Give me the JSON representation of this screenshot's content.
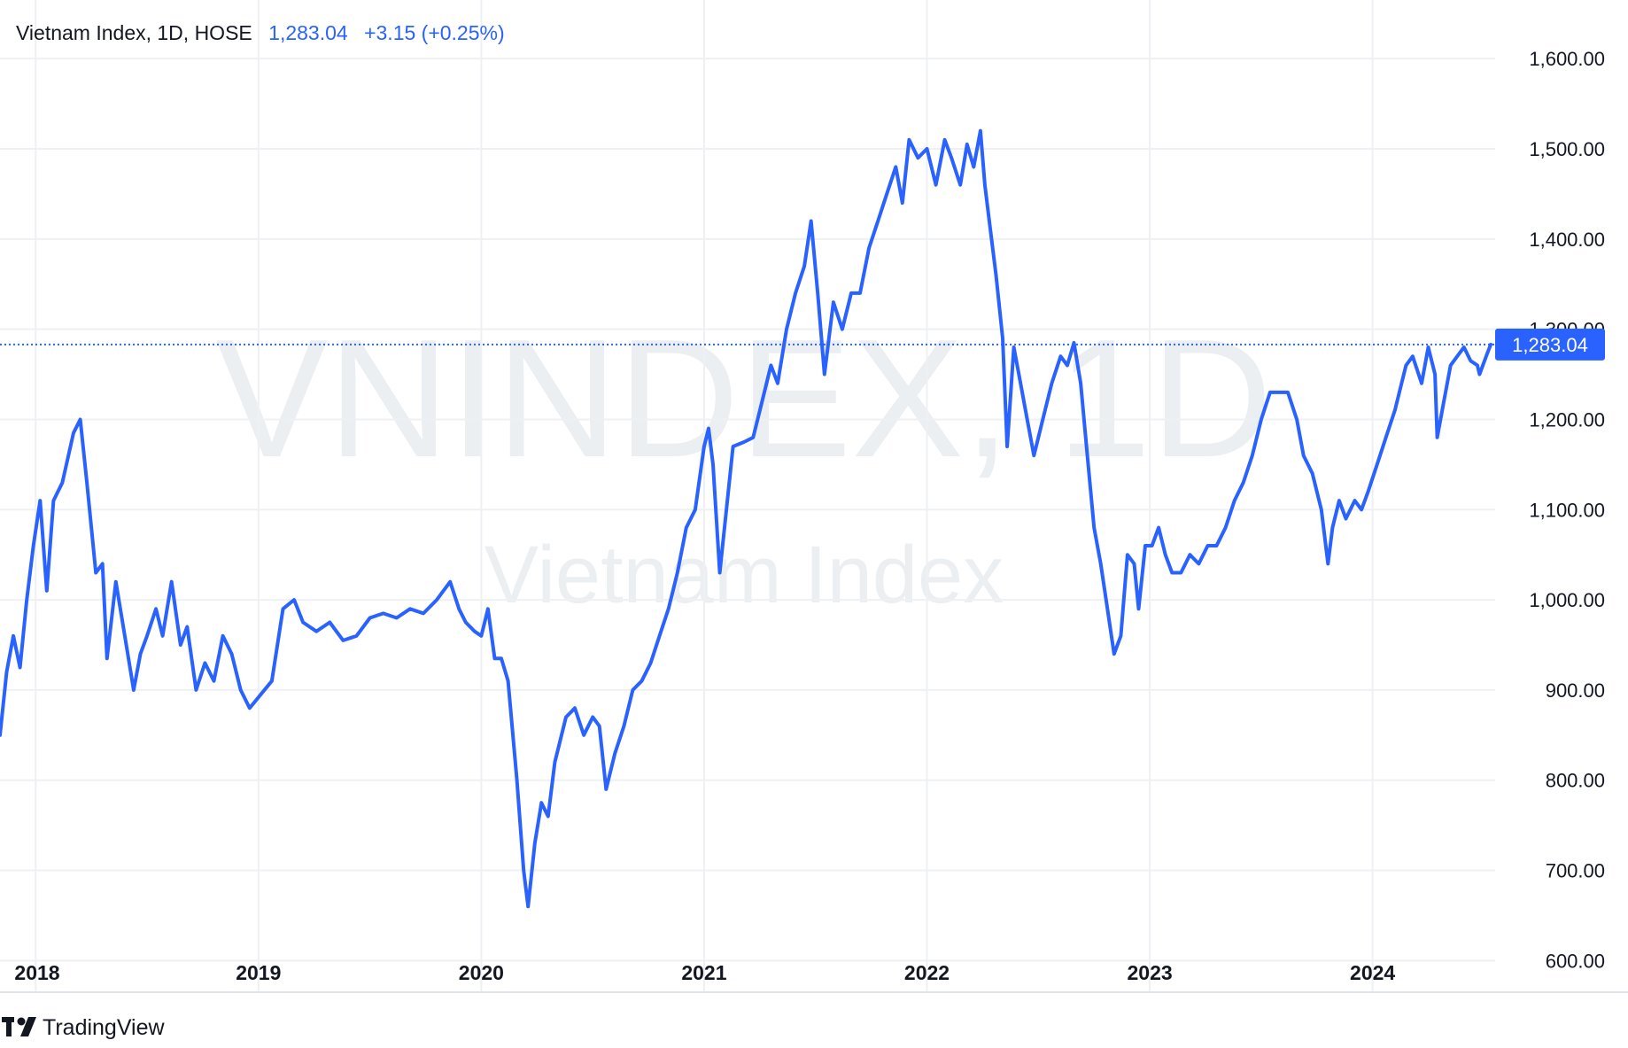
{
  "header": {
    "symbol_text": "Vietnam Index, 1D, HOSE",
    "last_price": "1,283.04",
    "change": "+3.15 (+0.25%)"
  },
  "watermark": {
    "symbol": "VNINDEX, 1D",
    "name": "Vietnam Index"
  },
  "price_label": "1,283.04",
  "branding": {
    "logo_text": "TradingView",
    "logo_icon": "tradingview-logo-icon"
  },
  "colors": {
    "line": "#2962ff",
    "label_bg": "#2962ff",
    "grid": "#eef0f3",
    "text": "#131722",
    "watermark": "#eceff2"
  },
  "chart_data": {
    "type": "line",
    "title": "Vietnam Index, 1D, HOSE",
    "xlabel": "",
    "ylabel": "",
    "ylim": [
      565,
      1665
    ],
    "xlim": [
      2017.84,
      2024.55
    ],
    "y_ticks": [
      "1,600.00",
      "1,500.00",
      "1,400.00",
      "1,300.00",
      "1,200.00",
      "1,100.00",
      "1,000.00",
      "900.00",
      "800.00",
      "700.00",
      "600.00"
    ],
    "y_tick_values": [
      1600,
      1500,
      1400,
      1300,
      1200,
      1100,
      1000,
      900,
      800,
      700,
      600
    ],
    "x_ticks": [
      "2018",
      "2019",
      "2020",
      "2021",
      "2022",
      "2023",
      "2024"
    ],
    "x_tick_values": [
      2018,
      2019,
      2020,
      2021,
      2022,
      2023,
      2024
    ],
    "last_value": 1283.04,
    "grid": true,
    "series": [
      {
        "points": [
          [
            2017.84,
            850
          ],
          [
            2017.87,
            920
          ],
          [
            2017.9,
            960
          ],
          [
            2017.93,
            925
          ],
          [
            2017.96,
            1000
          ],
          [
            2017.99,
            1060
          ],
          [
            2018.02,
            1110
          ],
          [
            2018.05,
            1010
          ],
          [
            2018.08,
            1110
          ],
          [
            2018.12,
            1130
          ],
          [
            2018.17,
            1185
          ],
          [
            2018.2,
            1200
          ],
          [
            2018.23,
            1130
          ],
          [
            2018.27,
            1030
          ],
          [
            2018.3,
            1040
          ],
          [
            2018.32,
            935
          ],
          [
            2018.36,
            1020
          ],
          [
            2018.4,
            960
          ],
          [
            2018.44,
            900
          ],
          [
            2018.47,
            940
          ],
          [
            2018.5,
            960
          ],
          [
            2018.54,
            990
          ],
          [
            2018.57,
            960
          ],
          [
            2018.61,
            1020
          ],
          [
            2018.65,
            950
          ],
          [
            2018.68,
            970
          ],
          [
            2018.72,
            900
          ],
          [
            2018.76,
            930
          ],
          [
            2018.8,
            910
          ],
          [
            2018.84,
            960
          ],
          [
            2018.88,
            940
          ],
          [
            2018.92,
            900
          ],
          [
            2018.96,
            880
          ],
          [
            2019.0,
            892
          ],
          [
            2019.06,
            910
          ],
          [
            2019.11,
            990
          ],
          [
            2019.16,
            1000
          ],
          [
            2019.2,
            975
          ],
          [
            2019.26,
            965
          ],
          [
            2019.32,
            975
          ],
          [
            2019.38,
            955
          ],
          [
            2019.44,
            960
          ],
          [
            2019.5,
            980
          ],
          [
            2019.56,
            985
          ],
          [
            2019.62,
            980
          ],
          [
            2019.68,
            990
          ],
          [
            2019.74,
            985
          ],
          [
            2019.8,
            1000
          ],
          [
            2019.86,
            1020
          ],
          [
            2019.9,
            990
          ],
          [
            2019.93,
            975
          ],
          [
            2019.97,
            965
          ],
          [
            2020.0,
            960
          ],
          [
            2020.03,
            990
          ],
          [
            2020.06,
            935
          ],
          [
            2020.09,
            935
          ],
          [
            2020.12,
            910
          ],
          [
            2020.16,
            800
          ],
          [
            2020.19,
            700
          ],
          [
            2020.21,
            660
          ],
          [
            2020.24,
            730
          ],
          [
            2020.27,
            775
          ],
          [
            2020.3,
            760
          ],
          [
            2020.33,
            820
          ],
          [
            2020.38,
            870
          ],
          [
            2020.42,
            880
          ],
          [
            2020.46,
            850
          ],
          [
            2020.5,
            870
          ],
          [
            2020.53,
            860
          ],
          [
            2020.56,
            790
          ],
          [
            2020.6,
            830
          ],
          [
            2020.64,
            860
          ],
          [
            2020.68,
            900
          ],
          [
            2020.72,
            910
          ],
          [
            2020.76,
            930
          ],
          [
            2020.8,
            960
          ],
          [
            2020.84,
            990
          ],
          [
            2020.88,
            1030
          ],
          [
            2020.92,
            1080
          ],
          [
            2020.96,
            1100
          ],
          [
            2021.0,
            1170
          ],
          [
            2021.02,
            1190
          ],
          [
            2021.04,
            1150
          ],
          [
            2021.07,
            1030
          ],
          [
            2021.1,
            1100
          ],
          [
            2021.13,
            1170
          ],
          [
            2021.18,
            1175
          ],
          [
            2021.22,
            1180
          ],
          [
            2021.26,
            1220
          ],
          [
            2021.3,
            1260
          ],
          [
            2021.33,
            1240
          ],
          [
            2021.37,
            1300
          ],
          [
            2021.41,
            1340
          ],
          [
            2021.45,
            1370
          ],
          [
            2021.48,
            1420
          ],
          [
            2021.51,
            1340
          ],
          [
            2021.54,
            1250
          ],
          [
            2021.58,
            1330
          ],
          [
            2021.62,
            1300
          ],
          [
            2021.66,
            1340
          ],
          [
            2021.7,
            1340
          ],
          [
            2021.74,
            1390
          ],
          [
            2021.78,
            1420
          ],
          [
            2021.82,
            1450
          ],
          [
            2021.86,
            1480
          ],
          [
            2021.89,
            1440
          ],
          [
            2021.92,
            1510
          ],
          [
            2021.96,
            1490
          ],
          [
            2022.0,
            1500
          ],
          [
            2022.04,
            1460
          ],
          [
            2022.08,
            1510
          ],
          [
            2022.11,
            1490
          ],
          [
            2022.15,
            1460
          ],
          [
            2022.18,
            1505
          ],
          [
            2022.21,
            1480
          ],
          [
            2022.24,
            1520
          ],
          [
            2022.26,
            1460
          ],
          [
            2022.28,
            1420
          ],
          [
            2022.31,
            1360
          ],
          [
            2022.34,
            1290
          ],
          [
            2022.36,
            1170
          ],
          [
            2022.39,
            1280
          ],
          [
            2022.42,
            1240
          ],
          [
            2022.45,
            1200
          ],
          [
            2022.48,
            1160
          ],
          [
            2022.52,
            1200
          ],
          [
            2022.56,
            1240
          ],
          [
            2022.6,
            1270
          ],
          [
            2022.63,
            1260
          ],
          [
            2022.66,
            1285
          ],
          [
            2022.69,
            1240
          ],
          [
            2022.72,
            1160
          ],
          [
            2022.75,
            1080
          ],
          [
            2022.78,
            1040
          ],
          [
            2022.81,
            990
          ],
          [
            2022.84,
            940
          ],
          [
            2022.87,
            960
          ],
          [
            2022.9,
            1050
          ],
          [
            2022.93,
            1040
          ],
          [
            2022.95,
            990
          ],
          [
            2022.98,
            1060
          ],
          [
            2023.01,
            1060
          ],
          [
            2023.04,
            1080
          ],
          [
            2023.07,
            1050
          ],
          [
            2023.1,
            1030
          ],
          [
            2023.14,
            1030
          ],
          [
            2023.18,
            1050
          ],
          [
            2023.22,
            1040
          ],
          [
            2023.26,
            1060
          ],
          [
            2023.3,
            1060
          ],
          [
            2023.34,
            1080
          ],
          [
            2023.38,
            1110
          ],
          [
            2023.42,
            1130
          ],
          [
            2023.46,
            1160
          ],
          [
            2023.5,
            1200
          ],
          [
            2023.54,
            1230
          ],
          [
            2023.58,
            1230
          ],
          [
            2023.62,
            1230
          ],
          [
            2023.66,
            1200
          ],
          [
            2023.69,
            1160
          ],
          [
            2023.73,
            1140
          ],
          [
            2023.77,
            1100
          ],
          [
            2023.8,
            1040
          ],
          [
            2023.82,
            1080
          ],
          [
            2023.85,
            1110
          ],
          [
            2023.88,
            1090
          ],
          [
            2023.92,
            1110
          ],
          [
            2023.95,
            1100
          ],
          [
            2023.98,
            1120
          ],
          [
            2024.02,
            1150
          ],
          [
            2024.06,
            1180
          ],
          [
            2024.1,
            1210
          ],
          [
            2024.15,
            1260
          ],
          [
            2024.18,
            1270
          ],
          [
            2024.22,
            1240
          ],
          [
            2024.25,
            1280
          ],
          [
            2024.28,
            1250
          ],
          [
            2024.29,
            1180
          ],
          [
            2024.32,
            1220
          ],
          [
            2024.35,
            1260
          ],
          [
            2024.38,
            1270
          ],
          [
            2024.41,
            1280
          ],
          [
            2024.44,
            1265
          ],
          [
            2024.47,
            1260
          ],
          [
            2024.48,
            1250
          ],
          [
            2024.51,
            1270
          ],
          [
            2024.53,
            1283
          ]
        ]
      }
    ]
  }
}
